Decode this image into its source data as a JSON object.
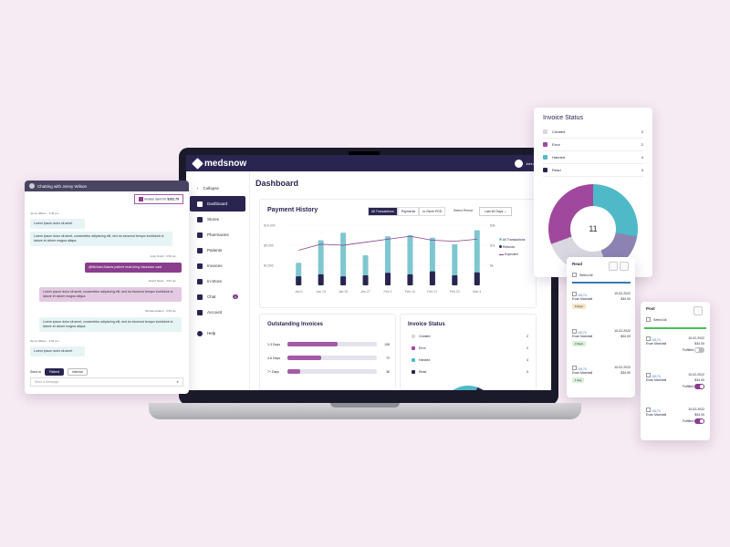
{
  "app": {
    "name": "medsnow",
    "user": "John Smith"
  },
  "sidebar": {
    "collapse": "Collapse",
    "items": [
      {
        "label": "Dashboard"
      },
      {
        "label": "Stores"
      },
      {
        "label": "Pharmacies"
      },
      {
        "label": "Patients"
      },
      {
        "label": "Invoices"
      },
      {
        "label": "In-Store"
      },
      {
        "label": "Chat",
        "badge": "4"
      },
      {
        "label": "Account"
      },
      {
        "label": "Help"
      }
    ]
  },
  "dashboard": {
    "title": "Dashboard",
    "payment_history": {
      "title": "Payment History",
      "tabs": [
        "All Transactions",
        "Payments",
        "In-Store POS"
      ],
      "select_period_label": "Select Period",
      "period_value": "Last 60 Days",
      "legend": [
        "All Transactions",
        "Refunds",
        "Expected"
      ]
    },
    "outstanding": {
      "title": "Outstanding Invoices",
      "rows": [
        {
          "label": "1-3 Days",
          "value": "108",
          "pct": 0.56
        },
        {
          "label": "4-6 Days",
          "value": "72",
          "pct": 0.38
        },
        {
          "label": "7+ Days",
          "value": "36",
          "pct": 0.14
        }
      ]
    },
    "invoice_status": {
      "title": "Invoice Status",
      "rows": [
        {
          "label": "Created",
          "value": "2",
          "color": "#d9d7e0"
        },
        {
          "label": "Error",
          "value": "2",
          "color": "#a0489e"
        },
        {
          "label": "Handed",
          "value": "4",
          "color": "#4fb9c7"
        },
        {
          "label": "Read",
          "value": "3",
          "color": "#2a2550"
        }
      ]
    }
  },
  "chart_data": {
    "type": "bar",
    "categories": [
      "Jan 6",
      "Jan 13",
      "Jan 20",
      "Jan 27",
      "Feb 3",
      "Feb 10",
      "Feb 17",
      "Feb 24",
      "Mar 3"
    ],
    "y_ticks": [
      "$10,000",
      "$5,000",
      "$2,500"
    ],
    "y2_ticks": [
      "$3k",
      "$1k",
      "$k"
    ],
    "series": [
      {
        "name": "All Transactions",
        "values": [
          45,
          90,
          105,
          60,
          98,
          100,
          95,
          82,
          110
        ]
      },
      {
        "name": "Refunds",
        "values": [
          18,
          22,
          18,
          20,
          25,
          22,
          28,
          20,
          26
        ]
      },
      {
        "name": "Expected",
        "values": [
          70,
          82,
          80,
          86,
          92,
          98,
          90,
          88,
          92
        ]
      }
    ]
  },
  "chat": {
    "title": "Chatting with Jenny Wilson",
    "invoice_sent": "Invoice Sent for",
    "invoice_amount": "$102.79",
    "messages": [
      {
        "meta": "Jenny Wilson · 3:46 pm",
        "text": "Lorem ipsum dolor sit amet",
        "side": "in"
      },
      {
        "meta": "",
        "text": "Lorem ipsum dolor sit amet, consectetur adipiscing elit, sed do eiusmod tempor incididunt ut labore et dolore magna aliqua.",
        "side": "in"
      },
      {
        "meta": "Gray Smith · 3:50 pm",
        "text": "@Michael Adams patient must bring insurance card",
        "side": "outd"
      },
      {
        "meta": "David Taylor · 3:51 pm",
        "text": "Lorem ipsum dolor sit amet, consectetur adipiscing elit, sed do eiusmod tempor incididunt ut labore et dolore magna aliqua.",
        "side": "out"
      },
      {
        "meta": "Michael Adams · 3:53 pm",
        "text": "Lorem ipsum dolor sit amet, consectetur adipiscing elit, sed do eiusmod tempor incididunt ut labore et dolore magna aliqua.",
        "side": "in"
      },
      {
        "meta": "Jenny Wilson · 4:02 pm",
        "text": "Lorem ipsum dolor sit amet",
        "side": "in"
      }
    ],
    "send_to_label": "Send to",
    "send_options": [
      "Patient",
      "Internal"
    ],
    "input_placeholder": "Send a Message"
  },
  "status_card": {
    "title": "Invoice Status",
    "rows": [
      {
        "label": "Created",
        "value": "2",
        "color": "#d9d7e0"
      },
      {
        "label": "Error",
        "value": "2",
        "color": "#a0489e"
      },
      {
        "label": "Handed",
        "value": "4",
        "color": "#4fb9c7"
      },
      {
        "label": "Read",
        "value": "3",
        "color": "#2a2550"
      }
    ],
    "total": "11"
  },
  "read_card": {
    "title": "Read",
    "select_all": "Select All",
    "items": [
      {
        "id": "10174",
        "date": "10-02-2022",
        "name": "Evan Marshall",
        "amount": "$34.00",
        "tag": "9 days",
        "tag_color": "#f5e6c6"
      },
      {
        "id": "10174",
        "date": "10-02-2022",
        "name": "Evan Marshall",
        "amount": "$34.00",
        "tag": "2 days",
        "tag_color": "#d8f0d8"
      },
      {
        "id": "10174",
        "date": "10-02-2022",
        "name": "Evan Marshall",
        "amount": "$34.00",
        "tag": "1 day",
        "tag_color": "#d8f0d8"
      }
    ]
  },
  "post_card": {
    "title": "Post",
    "select_all": "Select All",
    "fulfilled_label": "Fulfilled",
    "items": [
      {
        "id": "10174",
        "date": "10-02-2022",
        "name": "Evan Marshall",
        "amount": "$34.00",
        "on": false
      },
      {
        "id": "10174",
        "date": "10-02-2022",
        "name": "Evan Marshall",
        "amount": "$34.00",
        "on": true
      },
      {
        "id": "10174",
        "date": "10-02-2022",
        "name": "Evan Marshall",
        "amount": "$34.00",
        "on": true
      }
    ]
  }
}
